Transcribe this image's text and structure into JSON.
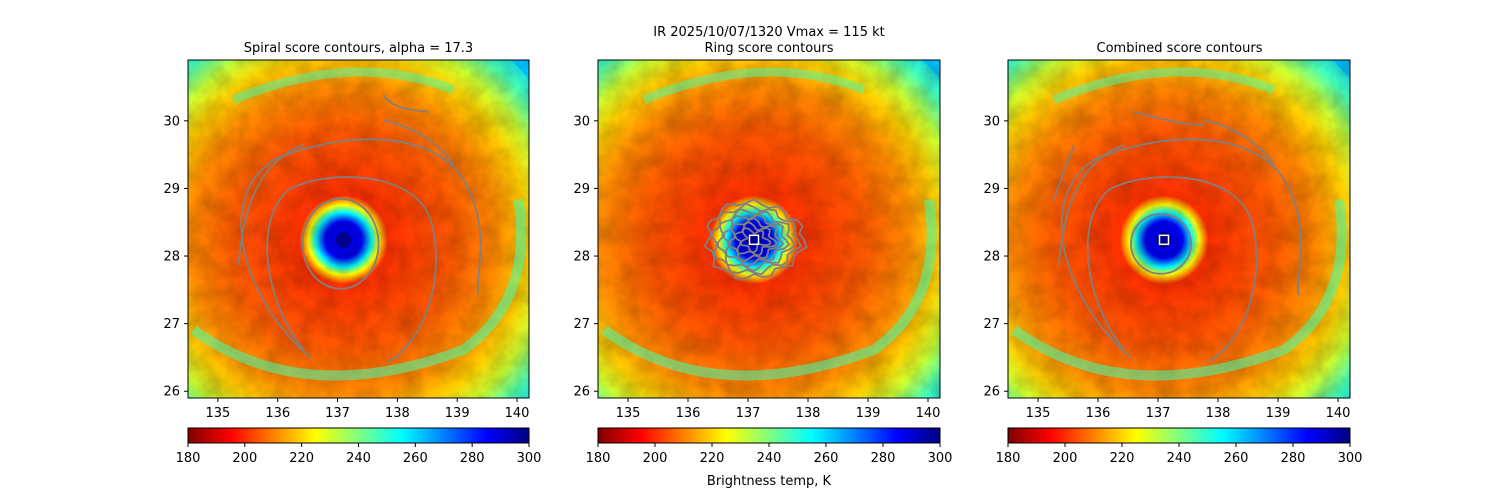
{
  "suptitle": "IR  2025/10/07/1320    Vmax = 115 kt",
  "colorbar_label": "Brightness temp, K",
  "colormap": [
    "#800000",
    "#ff0000",
    "#ff8000",
    "#ffff00",
    "#80ff80",
    "#00ffff",
    "#0080ff",
    "#0000ff",
    "#000080"
  ],
  "contour_color": "#808080",
  "marker_color": "#ffffff",
  "chart_data": [
    {
      "type": "heatmap",
      "title": "Spiral score contours, alpha = 17.3",
      "xlim": [
        134.5,
        140.2
      ],
      "ylim": [
        25.9,
        30.9
      ],
      "xticks": [
        135,
        136,
        137,
        138,
        139,
        140
      ],
      "yticks": [
        26,
        27,
        28,
        29,
        30
      ],
      "center": [
        137.1,
        28.24
      ],
      "center_marker": false,
      "contours": "spiral",
      "colorbar": {
        "vmin": 180,
        "vmax": 300,
        "ticks": [
          180,
          200,
          220,
          240,
          260,
          280,
          300
        ]
      }
    },
    {
      "type": "heatmap",
      "title": "Ring score contours",
      "xlim": [
        134.5,
        140.2
      ],
      "ylim": [
        25.9,
        30.9
      ],
      "xticks": [
        135,
        136,
        137,
        138,
        139,
        140
      ],
      "yticks": [
        26,
        27,
        28,
        29,
        30
      ],
      "center": [
        137.1,
        28.24
      ],
      "center_marker": true,
      "contours": "ring",
      "colorbar": {
        "vmin": 180,
        "vmax": 300,
        "ticks": [
          180,
          200,
          220,
          240,
          260,
          280,
          300
        ]
      }
    },
    {
      "type": "heatmap",
      "title": "Combined score contours",
      "xlim": [
        134.5,
        140.2
      ],
      "ylim": [
        25.9,
        30.9
      ],
      "xticks": [
        135,
        136,
        137,
        138,
        139,
        140
      ],
      "yticks": [
        26,
        27,
        28,
        29,
        30
      ],
      "center": [
        137.1,
        28.24
      ],
      "center_marker": true,
      "contours": "combined",
      "colorbar": {
        "vmin": 180,
        "vmax": 300,
        "ticks": [
          180,
          200,
          220,
          240,
          260,
          280,
          300
        ]
      }
    }
  ]
}
